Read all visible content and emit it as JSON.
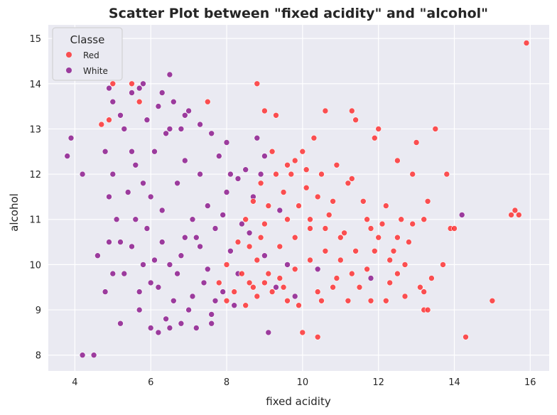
{
  "chart_data": {
    "type": "scatter",
    "title": "Scatter Plot between \"fixed acidity\" and \"alcohol\"",
    "xlabel": "fixed acidity",
    "ylabel": "alcohol",
    "xlim": [
      3.3,
      16.5
    ],
    "ylim": [
      7.65,
      15.3
    ],
    "xticks": [
      4,
      6,
      8,
      10,
      12,
      14,
      16
    ],
    "yticks": [
      8,
      9,
      10,
      11,
      12,
      13,
      14,
      15
    ],
    "grid": true,
    "legend": {
      "title": "Classe",
      "placement": "top-left",
      "entries": [
        "Red",
        "White"
      ]
    },
    "series": [
      {
        "name": "Red",
        "color": "#ff1a1a",
        "points": [
          [
            15.9,
            14.9
          ],
          [
            5.0,
            14.0
          ],
          [
            5.5,
            14.0
          ],
          [
            8.8,
            14.0
          ],
          [
            4.7,
            13.1
          ],
          [
            4.9,
            13.2
          ],
          [
            5.7,
            13.6
          ],
          [
            7.5,
            13.6
          ],
          [
            9.0,
            13.4
          ],
          [
            9.3,
            13.3
          ],
          [
            10.6,
            13.4
          ],
          [
            11.3,
            13.4
          ],
          [
            11.4,
            13.2
          ],
          [
            12.0,
            13.0
          ],
          [
            13.5,
            13.0
          ],
          [
            13.0,
            12.7
          ],
          [
            11.9,
            12.8
          ],
          [
            12.5,
            12.3
          ],
          [
            12.9,
            12.0
          ],
          [
            13.8,
            12.0
          ],
          [
            10.0,
            12.5
          ],
          [
            10.3,
            12.8
          ],
          [
            9.8,
            12.3
          ],
          [
            9.6,
            12.2
          ],
          [
            9.2,
            12.5
          ],
          [
            8.9,
            11.8
          ],
          [
            9.5,
            11.6
          ],
          [
            10.1,
            11.7
          ],
          [
            10.4,
            11.5
          ],
          [
            10.8,
            11.4
          ],
          [
            11.2,
            11.8
          ],
          [
            11.6,
            11.4
          ],
          [
            12.2,
            11.3
          ],
          [
            12.6,
            11.0
          ],
          [
            13.2,
            11.0
          ],
          [
            13.3,
            11.4
          ],
          [
            13.9,
            10.8
          ],
          [
            15.5,
            11.1
          ],
          [
            15.6,
            11.2
          ],
          [
            15.7,
            11.1
          ],
          [
            14.0,
            10.8
          ],
          [
            10.2,
            11.0
          ],
          [
            10.6,
            10.8
          ],
          [
            11.0,
            10.6
          ],
          [
            11.4,
            10.3
          ],
          [
            11.8,
            10.8
          ],
          [
            12.0,
            10.6
          ],
          [
            12.4,
            10.3
          ],
          [
            12.8,
            10.5
          ],
          [
            12.7,
            10.0
          ],
          [
            13.7,
            10.0
          ],
          [
            12.3,
            9.6
          ],
          [
            12.5,
            9.8
          ],
          [
            11.7,
            9.9
          ],
          [
            11.5,
            9.5
          ],
          [
            11.2,
            9.2
          ],
          [
            11.8,
            9.2
          ],
          [
            12.2,
            9.2
          ],
          [
            13.2,
            9.0
          ],
          [
            13.3,
            9.0
          ],
          [
            13.2,
            9.4
          ],
          [
            13.4,
            9.7
          ],
          [
            15.0,
            9.2
          ],
          [
            14.3,
            8.4
          ],
          [
            10.0,
            8.5
          ],
          [
            10.4,
            8.4
          ],
          [
            9.0,
            9.6
          ],
          [
            9.4,
            9.7
          ],
          [
            9.8,
            9.9
          ],
          [
            10.2,
            10.1
          ],
          [
            10.6,
            10.3
          ],
          [
            11.0,
            10.1
          ],
          [
            10.4,
            9.4
          ],
          [
            10.8,
            9.5
          ],
          [
            9.6,
            9.2
          ],
          [
            9.2,
            9.4
          ],
          [
            8.8,
            9.3
          ],
          [
            8.6,
            9.6
          ],
          [
            8.8,
            10.1
          ],
          [
            9.4,
            10.4
          ],
          [
            9.8,
            10.6
          ],
          [
            10.2,
            10.8
          ],
          [
            9.6,
            11.0
          ],
          [
            9.0,
            10.9
          ],
          [
            8.6,
            10.4
          ],
          [
            8.4,
            9.8
          ],
          [
            8.2,
            9.4
          ],
          [
            8.0,
            9.2
          ],
          [
            7.8,
            9.6
          ],
          [
            8.0,
            10.0
          ],
          [
            8.3,
            10.5
          ],
          [
            8.5,
            11.0
          ],
          [
            8.7,
            11.4
          ],
          [
            9.3,
            12.0
          ],
          [
            9.7,
            12.0
          ],
          [
            10.1,
            12.1
          ],
          [
            10.5,
            12.0
          ],
          [
            10.9,
            12.2
          ],
          [
            11.3,
            11.9
          ],
          [
            11.7,
            11.0
          ],
          [
            12.1,
            10.9
          ],
          [
            12.5,
            10.6
          ],
          [
            12.9,
            10.9
          ],
          [
            9.1,
            11.3
          ],
          [
            9.9,
            11.3
          ],
          [
            10.7,
            11.1
          ],
          [
            11.1,
            10.7
          ],
          [
            11.9,
            10.3
          ],
          [
            12.3,
            10.1
          ],
          [
            12.7,
            9.3
          ],
          [
            13.1,
            9.5
          ],
          [
            10.9,
            9.7
          ],
          [
            11.3,
            9.8
          ],
          [
            10.5,
            9.2
          ],
          [
            9.9,
            9.1
          ],
          [
            9.5,
            9.5
          ],
          [
            9.1,
            9.8
          ],
          [
            8.7,
            9.5
          ],
          [
            8.9,
            10.6
          ],
          [
            8.5,
            9.1
          ]
        ]
      },
      {
        "name": "White",
        "color": "#800080",
        "points": [
          [
            4.2,
            8.0
          ],
          [
            4.5,
            8.0
          ],
          [
            3.8,
            12.4
          ],
          [
            3.9,
            12.8
          ],
          [
            4.2,
            12.0
          ],
          [
            6.5,
            14.2
          ],
          [
            4.9,
            13.9
          ],
          [
            5.8,
            14.0
          ],
          [
            5.0,
            13.6
          ],
          [
            5.2,
            13.3
          ],
          [
            4.6,
            10.2
          ],
          [
            4.8,
            9.4
          ],
          [
            5.2,
            8.7
          ],
          [
            4.9,
            10.5
          ],
          [
            7.0,
            13.4
          ],
          [
            6.8,
            13.0
          ],
          [
            9.3,
            9.5
          ],
          [
            9.6,
            10.0
          ],
          [
            9.1,
            8.5
          ],
          [
            9.8,
            9.3
          ],
          [
            10.4,
            9.9
          ],
          [
            14.2,
            11.1
          ],
          [
            11.8,
            9.7
          ],
          [
            9.4,
            11.2
          ],
          [
            9.0,
            12.4
          ],
          [
            8.8,
            12.8
          ],
          [
            5.5,
            12.5
          ],
          [
            5.6,
            11.0
          ],
          [
            5.7,
            9.0
          ],
          [
            5.8,
            10.0
          ],
          [
            6.0,
            11.5
          ],
          [
            6.1,
            12.5
          ],
          [
            6.2,
            9.5
          ],
          [
            6.3,
            10.5
          ],
          [
            6.4,
            8.8
          ],
          [
            6.5,
            13.0
          ],
          [
            6.6,
            9.2
          ],
          [
            6.7,
            11.8
          ],
          [
            6.8,
            10.2
          ],
          [
            6.9,
            12.3
          ],
          [
            7.0,
            9.0
          ],
          [
            7.1,
            11.0
          ],
          [
            7.2,
            10.6
          ],
          [
            7.3,
            12.0
          ],
          [
            7.4,
            9.6
          ],
          [
            7.5,
            11.3
          ],
          [
            7.6,
            8.9
          ],
          [
            7.7,
            10.8
          ],
          [
            7.8,
            12.4
          ],
          [
            7.9,
            9.4
          ],
          [
            8.0,
            11.6
          ],
          [
            8.1,
            10.3
          ],
          [
            8.2,
            9.1
          ],
          [
            8.3,
            11.9
          ],
          [
            8.4,
            10.9
          ],
          [
            8.5,
            12.1
          ],
          [
            5.9,
            13.2
          ],
          [
            6.2,
            13.5
          ],
          [
            6.4,
            12.9
          ],
          [
            6.6,
            13.6
          ],
          [
            6.9,
            13.3
          ],
          [
            7.3,
            13.1
          ],
          [
            7.6,
            12.9
          ],
          [
            8.0,
            12.7
          ],
          [
            5.3,
            9.8
          ],
          [
            5.4,
            11.6
          ],
          [
            5.5,
            10.4
          ],
          [
            5.6,
            12.2
          ],
          [
            5.7,
            9.4
          ],
          [
            5.8,
            11.8
          ],
          [
            5.9,
            10.8
          ],
          [
            6.0,
            9.6
          ],
          [
            6.1,
            10.1
          ],
          [
            6.3,
            11.2
          ],
          [
            6.5,
            10.0
          ],
          [
            6.7,
            9.8
          ],
          [
            6.9,
            10.6
          ],
          [
            7.1,
            9.3
          ],
          [
            7.3,
            10.4
          ],
          [
            7.5,
            9.9
          ],
          [
            7.7,
            9.2
          ],
          [
            7.9,
            11.1
          ],
          [
            8.1,
            12.0
          ],
          [
            8.3,
            9.8
          ],
          [
            8.6,
            10.7
          ],
          [
            8.7,
            11.5
          ],
          [
            8.9,
            12.0
          ],
          [
            9.0,
            10.2
          ],
          [
            6.0,
            8.6
          ],
          [
            6.2,
            8.5
          ],
          [
            6.5,
            8.6
          ],
          [
            6.8,
            8.7
          ],
          [
            7.2,
            8.6
          ],
          [
            7.6,
            8.7
          ],
          [
            5.0,
            12.0
          ],
          [
            5.1,
            11.0
          ],
          [
            5.2,
            10.5
          ],
          [
            4.9,
            11.5
          ],
          [
            4.8,
            12.5
          ],
          [
            5.0,
            9.8
          ],
          [
            5.3,
            13.0
          ],
          [
            5.5,
            13.8
          ],
          [
            5.7,
            13.9
          ],
          [
            6.3,
            13.8
          ]
        ]
      }
    ]
  }
}
